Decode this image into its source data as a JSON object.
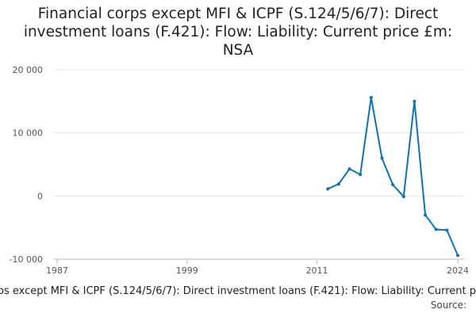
{
  "chart_data": {
    "type": "line",
    "title": "Financial corps except MFI & ICPF (S.124/5/6/7): Direct investment loans (F.421): Flow: Liability: Current price £m: NSA",
    "source": "Source:",
    "x": [
      2012,
      2013,
      2014,
      2015,
      2016,
      2017,
      2018,
      2019,
      2020,
      2021,
      2022,
      2023,
      2024
    ],
    "series": [
      {
        "color": "#0f72b6",
        "values": [
          1130,
          1900,
          4300,
          3400,
          15600,
          6000,
          1800,
          -100,
          15000,
          -3000,
          -5300,
          -5400,
          -9400
        ]
      }
    ],
    "xlim": [
      1987,
      2024
    ],
    "xticks": [
      1987,
      1999,
      2011,
      2024
    ],
    "ylim": [
      -10000,
      20000
    ],
    "yticks": [
      {
        "value": -10000,
        "label": "-10 000"
      },
      {
        "value": 0,
        "label": "0"
      },
      {
        "value": 10000,
        "label": "10 000"
      },
      {
        "value": 20000,
        "label": "20 000"
      }
    ],
    "grid": true
  }
}
